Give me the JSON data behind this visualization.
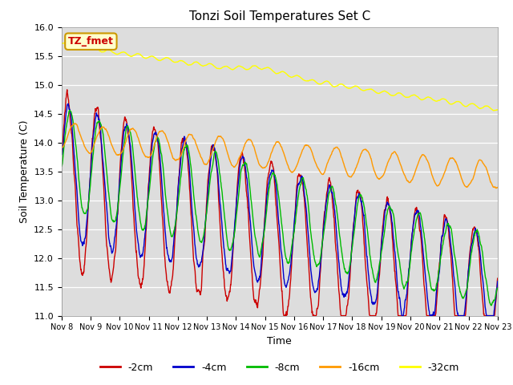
{
  "title": "Tonzi Soil Temperatures Set C",
  "xlabel": "Time",
  "ylabel": "Soil Temperature (C)",
  "ylim": [
    11.0,
    16.0
  ],
  "yticks": [
    11.0,
    11.5,
    12.0,
    12.5,
    13.0,
    13.5,
    14.0,
    14.5,
    15.0,
    15.5,
    16.0
  ],
  "xtick_labels": [
    "Nov 8",
    "Nov 9",
    "Nov 10",
    "Nov 11",
    "Nov 12",
    "Nov 13",
    "Nov 14",
    "Nov 15",
    "Nov 16",
    "Nov 17",
    "Nov 18",
    "Nov 19",
    "Nov 20",
    "Nov 21",
    "Nov 22",
    "Nov 23"
  ],
  "legend_labels": [
    "-2cm",
    "-4cm",
    "-8cm",
    "-16cm",
    "-32cm"
  ],
  "legend_colors": [
    "#cc0000",
    "#0000cc",
    "#00bb00",
    "#ff9900",
    "#ffff00"
  ],
  "annotation_text": "TZ_fmet",
  "annotation_bg": "#ffffcc",
  "annotation_border": "#cc9900",
  "annotation_color": "#cc0000",
  "plot_bg": "#dddddd",
  "n_days": 15
}
